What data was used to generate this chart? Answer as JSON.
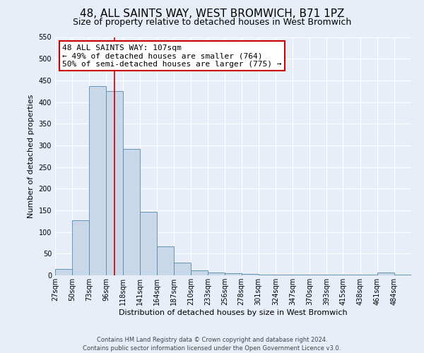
{
  "title": "48, ALL SAINTS WAY, WEST BROMWICH, B71 1PZ",
  "subtitle": "Size of property relative to detached houses in West Bromwich",
  "xlabel": "Distribution of detached houses by size in West Bromwich",
  "ylabel": "Number of detached properties",
  "bin_labels": [
    "27sqm",
    "50sqm",
    "73sqm",
    "96sqm",
    "118sqm",
    "141sqm",
    "164sqm",
    "187sqm",
    "210sqm",
    "233sqm",
    "256sqm",
    "278sqm",
    "301sqm",
    "324sqm",
    "347sqm",
    "370sqm",
    "393sqm",
    "415sqm",
    "438sqm",
    "461sqm",
    "484sqm"
  ],
  "bar_values": [
    15,
    127,
    437,
    425,
    291,
    147,
    67,
    29,
    12,
    7,
    5,
    3,
    1,
    1,
    1,
    1,
    1,
    1,
    1,
    7,
    1
  ],
  "bar_color": "#c8d8e8",
  "bar_edge_color": "#5588aa",
  "ylim": [
    0,
    550
  ],
  "yticks": [
    0,
    50,
    100,
    150,
    200,
    250,
    300,
    350,
    400,
    450,
    500,
    550
  ],
  "property_line_x": 107,
  "annotation_title": "48 ALL SAINTS WAY: 107sqm",
  "annotation_line1": "← 49% of detached houses are smaller (764)",
  "annotation_line2": "50% of semi-detached houses are larger (775) →",
  "annotation_box_color": "#ffffff",
  "annotation_box_edge_color": "#cc0000",
  "footer_line1": "Contains HM Land Registry data © Crown copyright and database right 2024.",
  "footer_line2": "Contains public sector information licensed under the Open Government Licence v3.0.",
  "background_color": "#e8eef8",
  "plot_background_color": "#e8eef8",
  "grid_color": "#ffffff",
  "title_fontsize": 11,
  "subtitle_fontsize": 9,
  "xlabel_fontsize": 8,
  "ylabel_fontsize": 8,
  "tick_fontsize": 7,
  "annotation_fontsize": 8,
  "footer_fontsize": 6
}
